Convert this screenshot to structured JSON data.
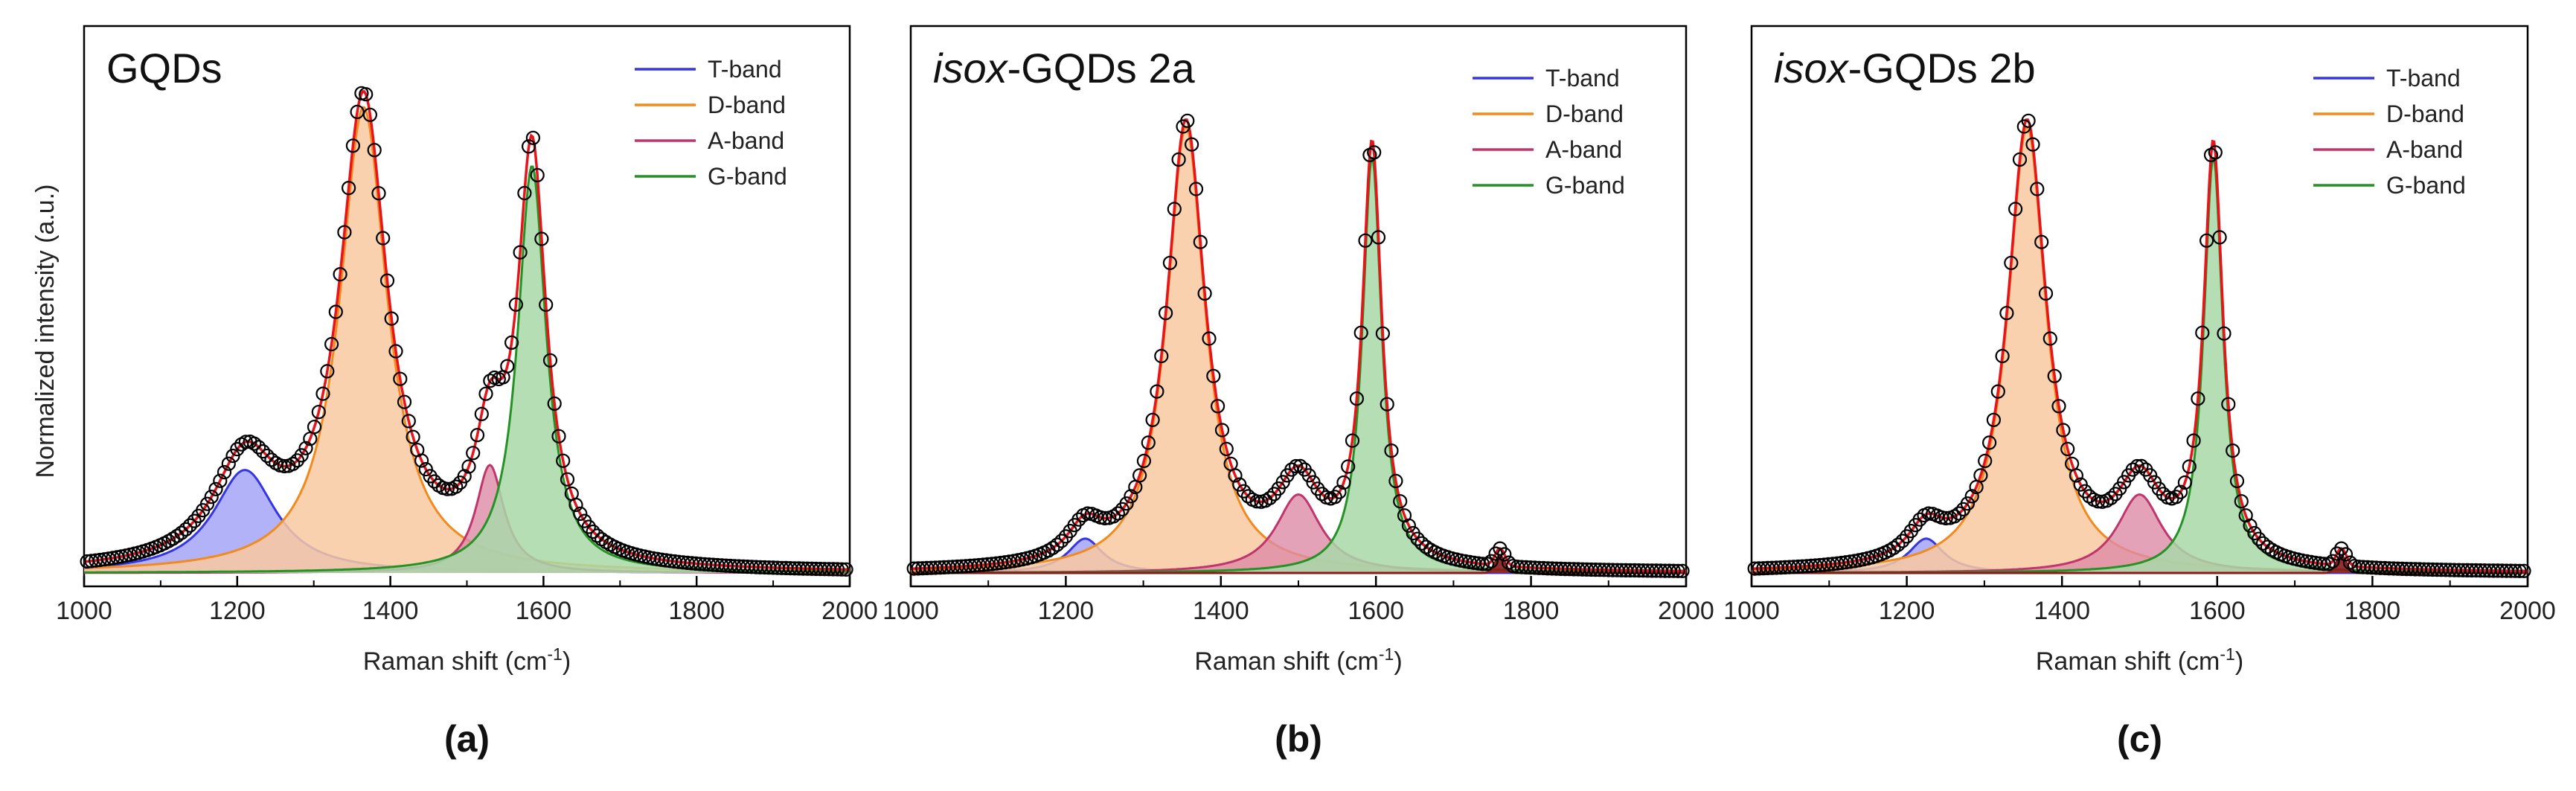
{
  "figure": {
    "ylabel": "Normalized intensity (a.u.)",
    "xlabel_prefix": "Raman shift (cm",
    "xlabel_sup": "-1",
    "xlabel_suffix": ")",
    "xticks": [
      "1000",
      "1200",
      "1400",
      "1600",
      "1800",
      "2000"
    ]
  },
  "colors": {
    "t_band": "#3535E6",
    "d_band": "#F28A1E",
    "a_band": "#C0356B",
    "g_band": "#259225",
    "t_fill": "#A5A5F8",
    "d_fill": "#F9C9A0",
    "a_fill": "#DD8BA6",
    "g_fill": "#A8D8A8",
    "minor_fill": "#8B1A1A",
    "fit": "#E8141A",
    "data": "#000000"
  },
  "chart_data": [
    {
      "type": "line",
      "panel_label": "(a)",
      "title_italic": "",
      "title_rest": "GQDs",
      "xlim": [
        1000,
        2000
      ],
      "ylim": [
        0,
        1.1
      ],
      "legend": [
        "T-band",
        "D-band",
        "A-band",
        "G-band"
      ],
      "series": [
        {
          "name": "T-band",
          "center": 1210,
          "amplitude": 0.21,
          "width": 100
        },
        {
          "name": "D-band",
          "center": 1365,
          "amplitude": 0.95,
          "width": 75
        },
        {
          "name": "A-band",
          "center": 1530,
          "amplitude": 0.22,
          "width": 45
        },
        {
          "name": "G-band",
          "center": 1585,
          "amplitude": 0.83,
          "width": 45
        }
      ]
    },
    {
      "type": "line",
      "panel_label": "(b)",
      "title_italic": "isox",
      "title_rest": "-GQDs 2a",
      "xlim": [
        1000,
        2000
      ],
      "ylim": [
        0,
        1.1
      ],
      "legend": [
        "T-band",
        "D-band",
        "A-band",
        "G-band"
      ],
      "series": [
        {
          "name": "T-band",
          "center": 1225,
          "amplitude": 0.07,
          "width": 55
        },
        {
          "name": "D-band",
          "center": 1355,
          "amplitude": 0.91,
          "width": 60
        },
        {
          "name": "A-band",
          "center": 1500,
          "amplitude": 0.16,
          "width": 70
        },
        {
          "name": "G-band",
          "center": 1595,
          "amplitude": 0.85,
          "width": 30
        },
        {
          "name": "band-1760",
          "center": 1760,
          "amplitude": 0.035,
          "width": 15
        }
      ]
    },
    {
      "type": "line",
      "panel_label": "(c)",
      "title_italic": "isox",
      "title_rest": "-GQDs 2b",
      "xlim": [
        1000,
        2000
      ],
      "ylim": [
        0,
        1.1
      ],
      "legend": [
        "T-band",
        "D-band",
        "A-band",
        "G-band"
      ],
      "series": [
        {
          "name": "T-band",
          "center": 1225,
          "amplitude": 0.07,
          "width": 55
        },
        {
          "name": "D-band",
          "center": 1355,
          "amplitude": 0.91,
          "width": 60
        },
        {
          "name": "A-band",
          "center": 1500,
          "amplitude": 0.16,
          "width": 70
        },
        {
          "name": "G-band",
          "center": 1595,
          "amplitude": 0.85,
          "width": 30
        },
        {
          "name": "band-1760",
          "center": 1760,
          "amplitude": 0.035,
          "width": 15
        }
      ]
    }
  ]
}
